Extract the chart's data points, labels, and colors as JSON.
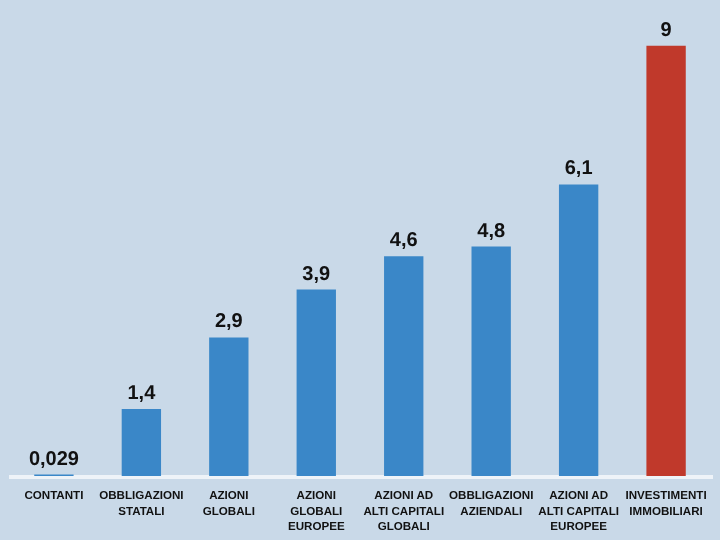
{
  "chart_data": {
    "type": "bar",
    "categories": [
      "CONTANTI",
      "OBBLIGAZIONI\nSTATALI",
      "AZIONI\nGLOBALI",
      "AZIONI\nGLOBALI\nEUROPEE",
      "AZIONI AD\nALTI CAPITALI\nGLOBALI",
      "OBBLIGAZIONI\nAZIENDALI",
      "AZIONI AD\nALTI CAPITALI\nEUROPEE",
      "INVESTIMENTI\nIMMOBILIARI"
    ],
    "values": [
      0.029,
      1.4,
      2.9,
      3.9,
      4.6,
      4.8,
      6.1,
      9
    ],
    "colors": [
      "#3a87c8",
      "#3a87c8",
      "#3a87c8",
      "#3a87c8",
      "#3a87c8",
      "#3a87c8",
      "#3a87c8",
      "#c0392b"
    ],
    "value_labels": [
      "0,029",
      "1,4",
      "2,9",
      "3,9",
      "4,6",
      "4,8",
      "6,1",
      "9"
    ],
    "grid": false
  }
}
